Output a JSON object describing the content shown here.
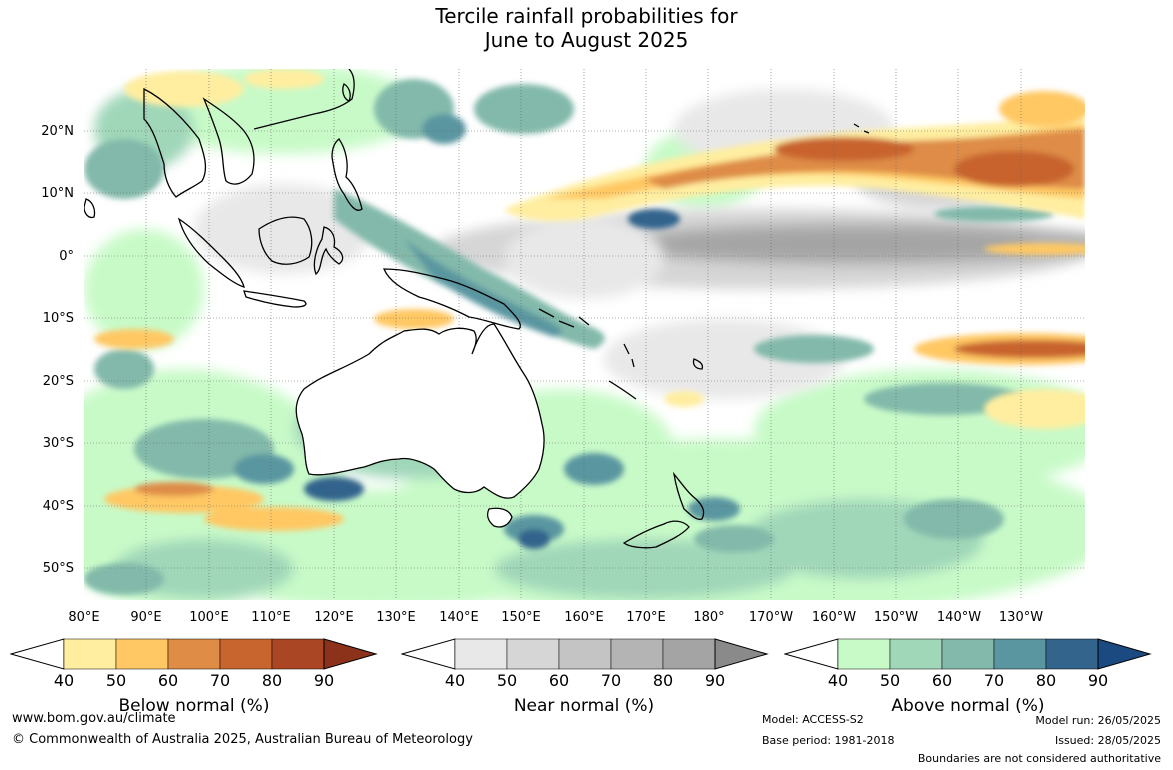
{
  "header": {
    "title_line1": "Tercile rainfall probabilities for",
    "title_line2": "June to August 2025"
  },
  "map": {
    "latitude_labels": [
      "20°N",
      "10°N",
      "0°",
      "10°S",
      "20°S",
      "30°S",
      "40°S",
      "50°S"
    ],
    "longitude_labels": [
      "80°E",
      "90°E",
      "100°E",
      "110°E",
      "120°E",
      "130°E",
      "140°E",
      "150°E",
      "160°E",
      "170°E",
      "180°",
      "170°W",
      "160°W",
      "150°W",
      "140°W",
      "130°W"
    ]
  },
  "legend": {
    "below": {
      "label": "Below normal (%)",
      "ticks": [
        "40",
        "50",
        "60",
        "70",
        "80",
        "90"
      ],
      "colors": [
        "#ffeea0",
        "#ffc864",
        "#de8c46",
        "#c8642d",
        "#aa4623",
        "#8c321a"
      ]
    },
    "near": {
      "label": "Near normal (%)",
      "ticks": [
        "40",
        "50",
        "60",
        "70",
        "80",
        "90"
      ],
      "colors": [
        "#e8e8e8",
        "#d6d6d6",
        "#c4c4c4",
        "#b4b4b4",
        "#a4a4a4",
        "#8a8a8a"
      ]
    },
    "above": {
      "label": "Above normal (%)",
      "ticks": [
        "40",
        "50",
        "60",
        "70",
        "80",
        "90"
      ],
      "colors": [
        "#c8fac8",
        "#a0d7b9",
        "#82b9aa",
        "#5a96a0",
        "#32648c",
        "#1a4a80"
      ]
    }
  },
  "footer": {
    "website": "www.bom.gov.au/climate",
    "copyright": "© Commonwealth of Australia 2025, Australian Bureau of Meteorology",
    "model": "Model: ACCESS-S2",
    "base_period": "Base period: 1981-2018",
    "model_run": "Model run: 26/05/2025",
    "issued": "Issued: 28/05/2025",
    "disclaimer": "Boundaries are not considered authoritative"
  }
}
